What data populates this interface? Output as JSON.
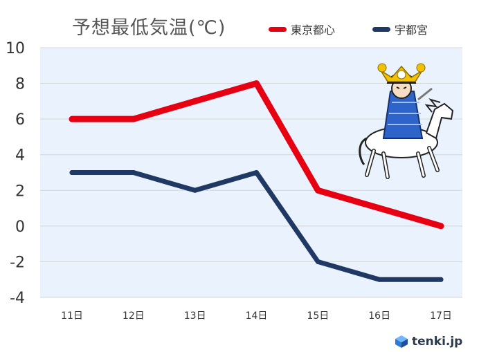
{
  "chart_data": {
    "type": "line",
    "title": "予想最低気温(℃)",
    "categories": [
      "11日",
      "12日",
      "13日",
      "14日",
      "15日",
      "16日",
      "17日"
    ],
    "series": [
      {
        "name": "東京都心",
        "values": [
          6,
          6,
          7,
          8,
          2,
          1,
          0
        ],
        "color": "#e60012"
      },
      {
        "name": "宇都宮",
        "values": [
          3,
          3,
          2,
          3,
          -2,
          -3,
          -3
        ],
        "color": "#1f3864"
      }
    ],
    "ylim": [
      -4,
      10
    ],
    "yticks": [
      "10",
      "8",
      "6",
      "4",
      "2",
      "0",
      "-2",
      "-4"
    ],
    "grid": true,
    "legend": "top-right",
    "plot_background": "#eaf3fd"
  },
  "brand": {
    "text": "tenki.jp"
  },
  "illustration": {
    "name": "samurai-on-horse-illustration"
  }
}
